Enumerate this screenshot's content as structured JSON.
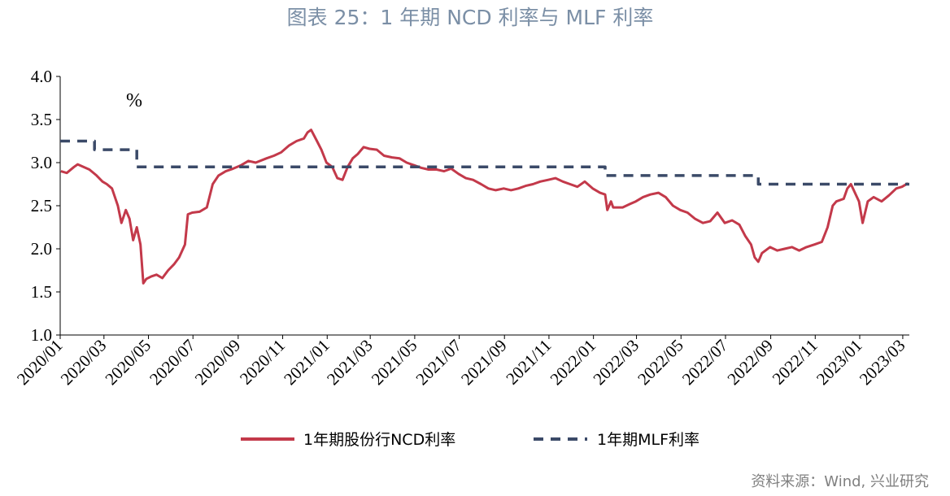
{
  "header": {
    "title": "图表 25：1 年期 NCD 利率与 MLF 利率"
  },
  "footer": {
    "source": "资料来源：Wind, 兴业研究"
  },
  "colors": {
    "ncd": "#c3394a",
    "mlf": "#3b4a68",
    "title": "#7b8fa6",
    "axis": "#000000"
  },
  "chart_data": {
    "type": "line",
    "title": "图表 25：1 年期 NCD 利率与 MLF 利率",
    "unit_label": "%",
    "ylim": [
      1.0,
      4.0
    ],
    "y_ticks": [
      "1.0",
      "1.5",
      "2.0",
      "2.5",
      "3.0",
      "3.5",
      "4.0"
    ],
    "x_tick_labels": [
      "2020/01",
      "2020/03",
      "2020/05",
      "2020/07",
      "2020/09",
      "2020/11",
      "2021/01",
      "2021/03",
      "2021/05",
      "2021/07",
      "2021/09",
      "2021/11",
      "2022/01",
      "2022/03",
      "2022/05",
      "2022/07",
      "2022/09",
      "2022/11",
      "2023/01",
      "2023/03"
    ],
    "xlim": [
      "2020-01-01",
      "2023-03-10"
    ],
    "grid": false,
    "legend_position": "bottom",
    "series": [
      {
        "name": "1年期股份行NCD利率",
        "style": "solid",
        "points": [
          [
            "2020-01-02",
            2.9
          ],
          [
            "2020-01-10",
            2.88
          ],
          [
            "2020-01-20",
            2.95
          ],
          [
            "2020-01-25",
            2.98
          ],
          [
            "2020-02-10",
            2.92
          ],
          [
            "2020-02-20",
            2.85
          ],
          [
            "2020-02-28",
            2.78
          ],
          [
            "2020-03-05",
            2.75
          ],
          [
            "2020-03-12",
            2.7
          ],
          [
            "2020-03-20",
            2.5
          ],
          [
            "2020-03-25",
            2.3
          ],
          [
            "2020-03-31",
            2.45
          ],
          [
            "2020-04-05",
            2.35
          ],
          [
            "2020-04-10",
            2.1
          ],
          [
            "2020-04-15",
            2.25
          ],
          [
            "2020-04-20",
            2.05
          ],
          [
            "2020-04-24",
            1.6
          ],
          [
            "2020-04-28",
            1.65
          ],
          [
            "2020-05-05",
            1.68
          ],
          [
            "2020-05-12",
            1.7
          ],
          [
            "2020-05-20",
            1.66
          ],
          [
            "2020-05-28",
            1.75
          ],
          [
            "2020-06-05",
            1.82
          ],
          [
            "2020-06-12",
            1.9
          ],
          [
            "2020-06-20",
            2.05
          ],
          [
            "2020-06-24",
            2.4
          ],
          [
            "2020-06-30",
            2.42
          ],
          [
            "2020-07-10",
            2.43
          ],
          [
            "2020-07-20",
            2.48
          ],
          [
            "2020-07-28",
            2.75
          ],
          [
            "2020-08-05",
            2.85
          ],
          [
            "2020-08-15",
            2.9
          ],
          [
            "2020-08-25",
            2.93
          ],
          [
            "2020-09-05",
            2.97
          ],
          [
            "2020-09-15",
            3.02
          ],
          [
            "2020-09-25",
            3.0
          ],
          [
            "2020-10-10",
            3.05
          ],
          [
            "2020-10-20",
            3.08
          ],
          [
            "2020-10-30",
            3.12
          ],
          [
            "2020-11-10",
            3.2
          ],
          [
            "2020-11-20",
            3.25
          ],
          [
            "2020-11-30",
            3.28
          ],
          [
            "2020-12-05",
            3.35
          ],
          [
            "2020-12-10",
            3.38
          ],
          [
            "2020-12-18",
            3.25
          ],
          [
            "2020-12-24",
            3.15
          ],
          [
            "2020-12-31",
            3.0
          ],
          [
            "2021-01-08",
            2.95
          ],
          [
            "2021-01-15",
            2.82
          ],
          [
            "2021-01-22",
            2.8
          ],
          [
            "2021-01-29",
            2.95
          ],
          [
            "2021-02-05",
            3.05
          ],
          [
            "2021-02-12",
            3.1
          ],
          [
            "2021-02-20",
            3.18
          ],
          [
            "2021-02-28",
            3.16
          ],
          [
            "2021-03-10",
            3.15
          ],
          [
            "2021-03-20",
            3.08
          ],
          [
            "2021-03-31",
            3.06
          ],
          [
            "2021-04-10",
            3.05
          ],
          [
            "2021-04-20",
            3.0
          ],
          [
            "2021-04-30",
            2.97
          ],
          [
            "2021-05-10",
            2.94
          ],
          [
            "2021-05-20",
            2.92
          ],
          [
            "2021-05-31",
            2.92
          ],
          [
            "2021-06-10",
            2.9
          ],
          [
            "2021-06-20",
            2.93
          ],
          [
            "2021-06-30",
            2.87
          ],
          [
            "2021-07-10",
            2.82
          ],
          [
            "2021-07-20",
            2.8
          ],
          [
            "2021-07-31",
            2.75
          ],
          [
            "2021-08-10",
            2.7
          ],
          [
            "2021-08-20",
            2.68
          ],
          [
            "2021-08-31",
            2.7
          ],
          [
            "2021-09-10",
            2.68
          ],
          [
            "2021-09-20",
            2.7
          ],
          [
            "2021-09-30",
            2.73
          ],
          [
            "2021-10-10",
            2.75
          ],
          [
            "2021-10-20",
            2.78
          ],
          [
            "2021-10-31",
            2.8
          ],
          [
            "2021-11-10",
            2.82
          ],
          [
            "2021-11-20",
            2.78
          ],
          [
            "2021-11-30",
            2.75
          ],
          [
            "2021-12-10",
            2.72
          ],
          [
            "2021-12-20",
            2.78
          ],
          [
            "2021-12-31",
            2.7
          ],
          [
            "2022-01-10",
            2.65
          ],
          [
            "2022-01-17",
            2.63
          ],
          [
            "2022-01-20",
            2.45
          ],
          [
            "2022-01-25",
            2.55
          ],
          [
            "2022-01-28",
            2.48
          ],
          [
            "2022-02-10",
            2.48
          ],
          [
            "2022-02-20",
            2.52
          ],
          [
            "2022-02-28",
            2.55
          ],
          [
            "2022-03-10",
            2.6
          ],
          [
            "2022-03-20",
            2.63
          ],
          [
            "2022-03-31",
            2.65
          ],
          [
            "2022-04-10",
            2.6
          ],
          [
            "2022-04-20",
            2.5
          ],
          [
            "2022-04-30",
            2.45
          ],
          [
            "2022-05-10",
            2.42
          ],
          [
            "2022-05-20",
            2.35
          ],
          [
            "2022-05-31",
            2.3
          ],
          [
            "2022-06-10",
            2.32
          ],
          [
            "2022-06-20",
            2.42
          ],
          [
            "2022-06-30",
            2.3
          ],
          [
            "2022-07-10",
            2.33
          ],
          [
            "2022-07-20",
            2.28
          ],
          [
            "2022-07-28",
            2.15
          ],
          [
            "2022-08-05",
            2.05
          ],
          [
            "2022-08-10",
            1.9
          ],
          [
            "2022-08-15",
            1.85
          ],
          [
            "2022-08-20",
            1.95
          ],
          [
            "2022-08-31",
            2.02
          ],
          [
            "2022-09-10",
            1.98
          ],
          [
            "2022-09-20",
            2.0
          ],
          [
            "2022-09-30",
            2.02
          ],
          [
            "2022-10-10",
            1.98
          ],
          [
            "2022-10-20",
            2.02
          ],
          [
            "2022-10-31",
            2.05
          ],
          [
            "2022-11-10",
            2.08
          ],
          [
            "2022-11-18",
            2.25
          ],
          [
            "2022-11-25",
            2.5
          ],
          [
            "2022-11-30",
            2.55
          ],
          [
            "2022-12-10",
            2.58
          ],
          [
            "2022-12-15",
            2.7
          ],
          [
            "2022-12-20",
            2.75
          ],
          [
            "2022-12-31",
            2.55
          ],
          [
            "2023-01-05",
            2.3
          ],
          [
            "2023-01-12",
            2.55
          ],
          [
            "2023-01-20",
            2.6
          ],
          [
            "2023-01-31",
            2.55
          ],
          [
            "2023-02-10",
            2.62
          ],
          [
            "2023-02-20",
            2.7
          ],
          [
            "2023-02-28",
            2.72
          ],
          [
            "2023-03-08",
            2.76
          ]
        ]
      },
      {
        "name": "1年期MLF利率",
        "style": "dashed",
        "points": [
          [
            "2020-01-01",
            3.25
          ],
          [
            "2020-02-17",
            3.25
          ],
          [
            "2020-02-17",
            3.15
          ],
          [
            "2020-04-15",
            3.15
          ],
          [
            "2020-04-15",
            2.95
          ],
          [
            "2022-01-17",
            2.95
          ],
          [
            "2022-01-17",
            2.85
          ],
          [
            "2022-08-15",
            2.85
          ],
          [
            "2022-08-15",
            2.75
          ],
          [
            "2023-03-10",
            2.75
          ]
        ]
      }
    ]
  }
}
